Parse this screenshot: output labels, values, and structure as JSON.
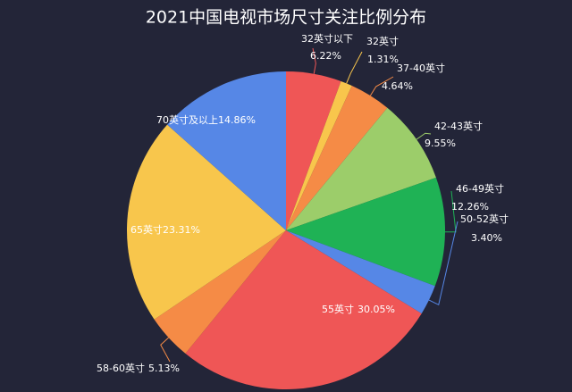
{
  "chart_data": {
    "type": "pie",
    "title": "2021中国电视市场尺寸关注比例分布",
    "categories": [
      "32英寸以下",
      "32英寸",
      "37-40英寸",
      "42-43英寸",
      "46-49英寸",
      "50-52英寸",
      "55英寸",
      "58-60英寸",
      "65英寸",
      "70英寸及以上"
    ],
    "values": [
      6.22,
      1.31,
      4.64,
      9.55,
      12.26,
      3.4,
      30.05,
      5.13,
      23.31,
      14.86
    ],
    "value_labels": [
      "6.22%",
      "1.31%",
      "4.64%",
      "9.55%",
      "12.26%",
      "3.40%",
      "30.05%",
      "5.13%",
      "23.31%",
      "14.86%"
    ],
    "colors": [
      "#ef5656",
      "#f8c64c",
      "#f58b46",
      "#9ccd6a",
      "#1fb255",
      "#5687e6",
      "#ef5656",
      "#f58b46",
      "#f8c64c",
      "#5687e6"
    ]
  }
}
